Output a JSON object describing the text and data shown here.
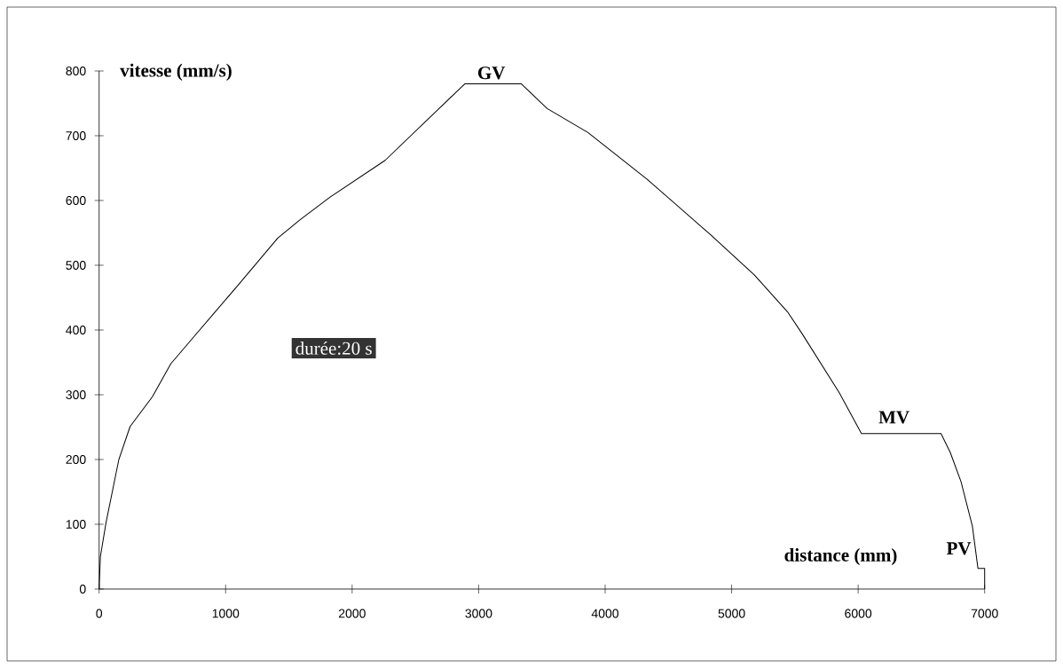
{
  "chart_data": {
    "type": "line",
    "xlabel": "distance (mm)",
    "ylabel": "vitesse (mm/s)",
    "x": [
      0,
      10,
      55,
      156,
      245,
      421,
      567,
      742,
      917,
      1093,
      1412,
      1587,
      1824,
      2261,
      2890,
      3338,
      3542,
      3864,
      4330,
      4828,
      5179,
      5442,
      5558,
      5851,
      6026,
      6655,
      6728,
      6813,
      6903,
      6947,
      7000,
      7000
    ],
    "series": [
      {
        "color": "#000000",
        "values": [
          0,
          50,
          103,
          200,
          251,
          297,
          348,
          388,
          428,
          468,
          542,
          570,
          605,
          662,
          780,
          780,
          742,
          705,
          633,
          548,
          485,
          428,
          394,
          303,
          240,
          240,
          211,
          166,
          97,
          32,
          32,
          0
        ]
      }
    ],
    "xlim": [
      0,
      7000
    ],
    "ylim": [
      0,
      800
    ],
    "xticks": [
      0,
      1000,
      2000,
      3000,
      4000,
      5000,
      6000,
      7000
    ],
    "yticks": [
      0,
      100,
      200,
      300,
      400,
      500,
      600,
      700,
      800
    ],
    "grid": false,
    "marker": "none",
    "line_style": "solid",
    "annotations": [
      {
        "text": "GV",
        "x": 3100,
        "y": 780
      },
      {
        "text": "MV",
        "x": 6340,
        "y": 240
      },
      {
        "text": "PV",
        "x": 6930,
        "y": 32
      },
      "durée:20 s"
    ]
  }
}
